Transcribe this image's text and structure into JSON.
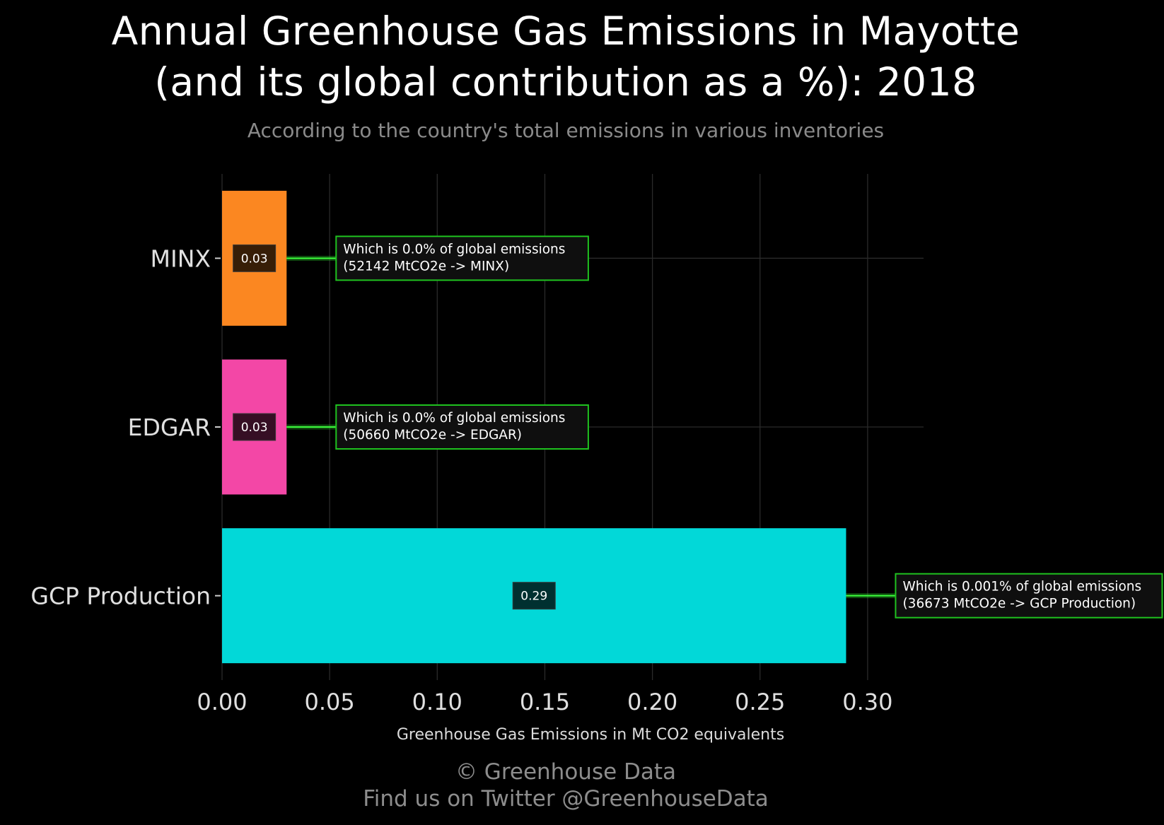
{
  "title_line1": "Annual Greenhouse Gas Emissions in Mayotte",
  "title_line2": "(and its global contribution as a %): 2018",
  "subtitle": "According to the country's total emissions in various inventories",
  "footer_line1": "© Greenhouse Data",
  "footer_line2": "Find us on Twitter @GreenhouseData",
  "chart_data": {
    "type": "bar",
    "orientation": "horizontal",
    "categories": [
      "MINX",
      "EDGAR",
      "GCP Production"
    ],
    "values": [
      0.03,
      0.03,
      0.29
    ],
    "value_labels": [
      "0.03",
      "0.03",
      "0.29"
    ],
    "colors": [
      "#fb8721",
      "#f347a6",
      "#02d8d8"
    ],
    "annotations": [
      [
        "Which is 0.0% of global emissions",
        "(52142 MtCO2e -> MINX)"
      ],
      [
        "Which is 0.0% of global emissions",
        "(50660 MtCO2e -> EDGAR)"
      ],
      [
        "Which is 0.001% of global emissions",
        "(36673 MtCO2e -> GCP Production)"
      ]
    ],
    "annotation_border_color": "#1fc21f",
    "xlabel": "Greenhouse Gas Emissions in Mt CO2 equivalents",
    "ylabel": "",
    "xlim": [
      0,
      0.326
    ],
    "xticks": [
      0.0,
      0.05,
      0.1,
      0.15,
      0.2,
      0.25,
      0.3
    ],
    "xtick_labels": [
      "0.00",
      "0.05",
      "0.10",
      "0.15",
      "0.20",
      "0.25",
      "0.30"
    ],
    "grid": true
  }
}
